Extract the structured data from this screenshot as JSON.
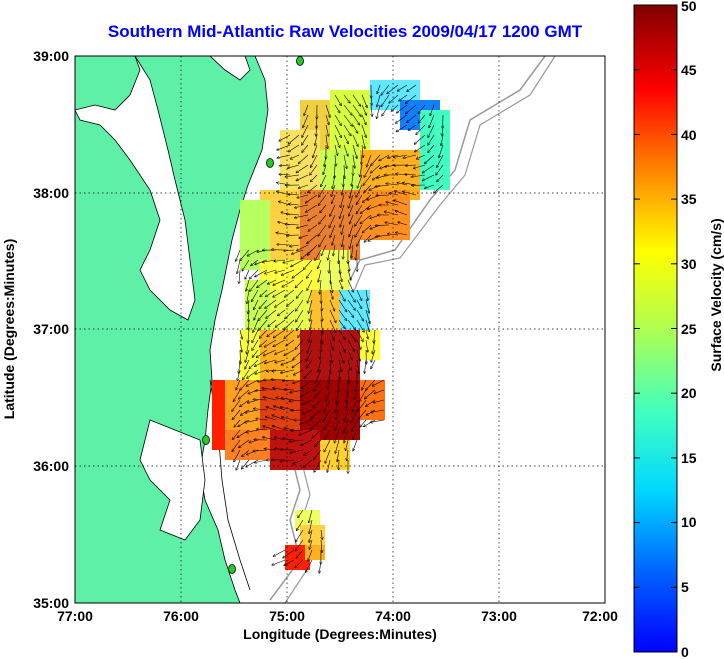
{
  "title": "Southern Mid-Atlantic Raw Velocities 2009/04/17 1200 GMT",
  "axes": {
    "xlabel": "Longitude (Degrees:Minutes)",
    "ylabel": "Latitude (Degrees:Minutes)",
    "x_ticks": [
      "77:00",
      "76:00",
      "75:00",
      "74:00",
      "73:00",
      "72:00"
    ],
    "y_ticks": [
      "39:00",
      "38:00",
      "37:00",
      "36:00",
      "35:00"
    ]
  },
  "colorbar": {
    "label": "Surface Velocity (cm/s)",
    "ticks": [
      "0",
      "5",
      "10",
      "15",
      "20",
      "25",
      "30",
      "35",
      "40",
      "45",
      "50"
    ]
  },
  "colors": {
    "land": "#5ff0a8",
    "title": "#0000ff",
    "station": "#22cc22",
    "bathymetry": "#999999"
  }
}
